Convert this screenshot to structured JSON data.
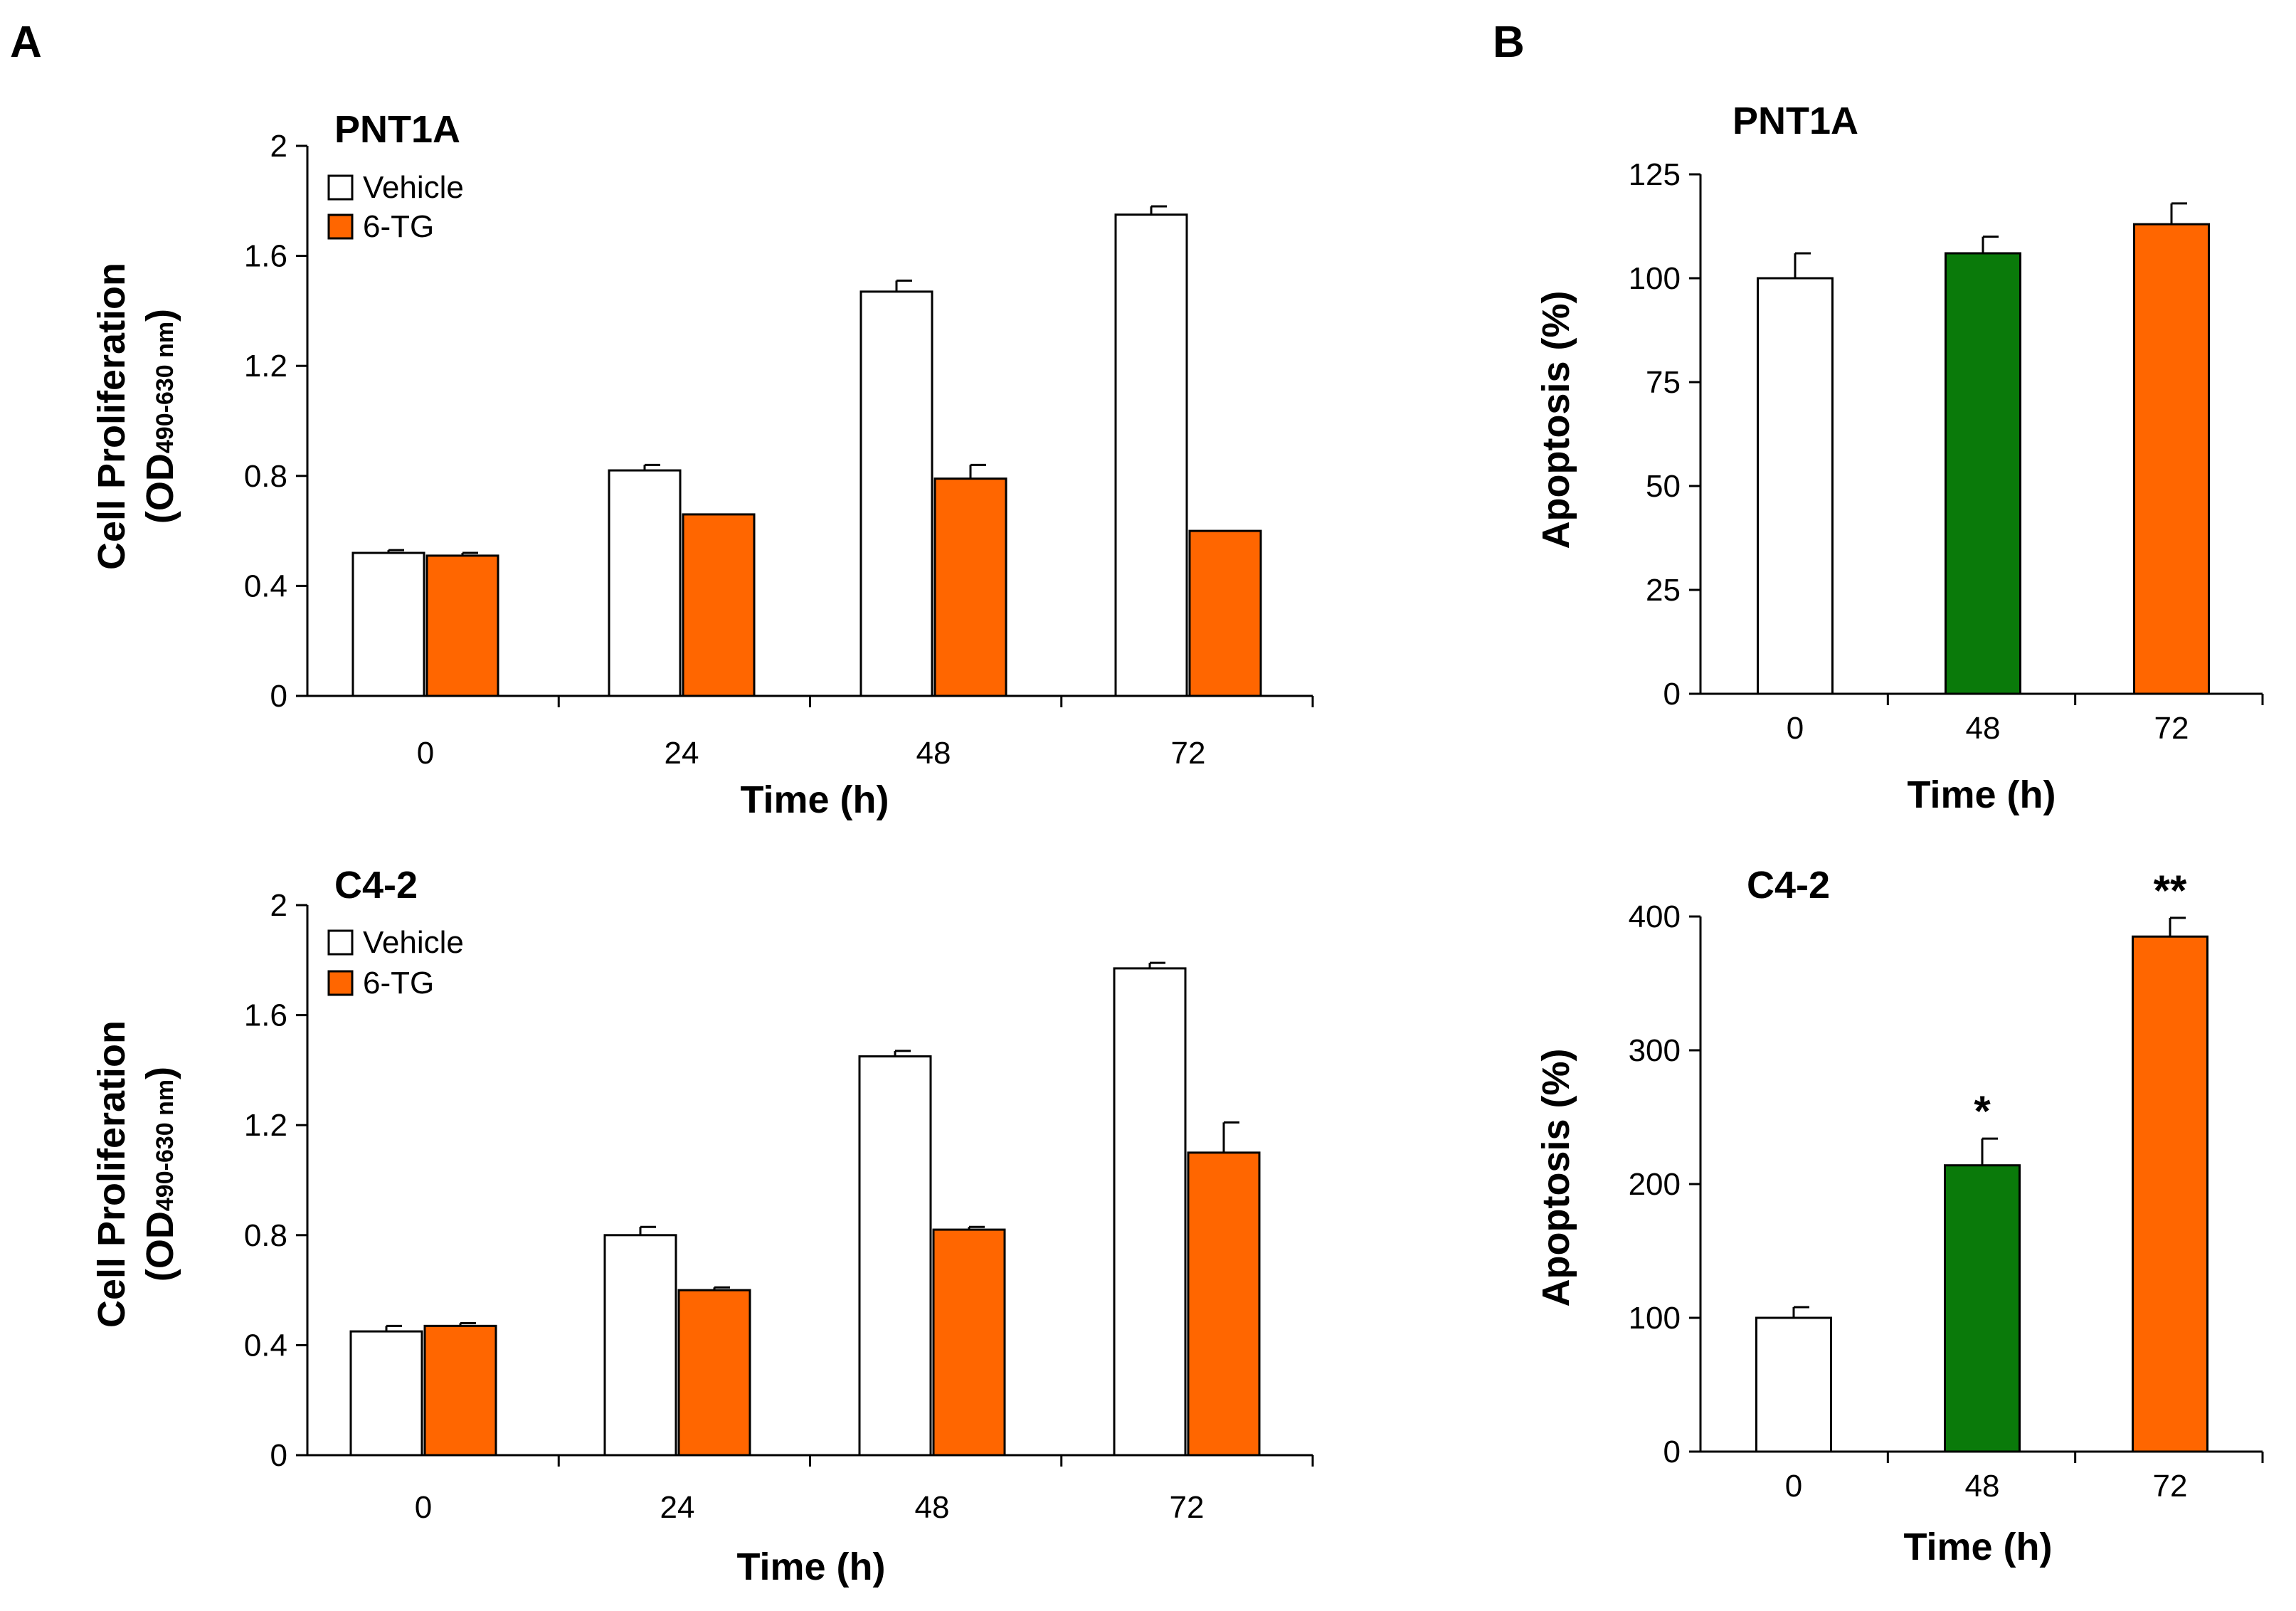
{
  "panels": [
    {
      "label": "A"
    },
    {
      "label": "B"
    }
  ],
  "colors": {
    "vehicle": "#ffffff",
    "tg": "#ff6600",
    "green": "#0a7a0a",
    "stroke": "#000000"
  },
  "chart_data": [
    {
      "type": "bar",
      "panel": "A",
      "title": "PNT1A",
      "xlabel": "Time (h)",
      "ylabel": "Cell Proliferation",
      "ylabel_unit_open": "(OD",
      "ylabel_unit_sub": "490-630 nm",
      "ylabel_unit_close": ")",
      "categories": [
        "0",
        "24",
        "48",
        "72"
      ],
      "ylim": [
        0,
        2
      ],
      "yticks": [
        "0",
        "0.4",
        "0.8",
        "1.2",
        "1.6",
        "2"
      ],
      "legend": [
        "Vehicle",
        "6-TG"
      ],
      "series": [
        {
          "name": "Vehicle",
          "values": [
            0.52,
            0.82,
            1.47,
            1.75
          ],
          "errors": [
            0.01,
            0.02,
            0.04,
            0.03
          ]
        },
        {
          "name": "6-TG",
          "values": [
            0.51,
            0.66,
            0.79,
            0.6
          ],
          "errors": [
            0.01,
            0.0,
            0.05,
            0.0
          ]
        }
      ],
      "annotations": []
    },
    {
      "type": "bar",
      "panel": "A",
      "title": "C4-2",
      "xlabel": "Time (h)",
      "ylabel": "Cell Proliferation",
      "ylabel_unit_open": "(OD",
      "ylabel_unit_sub": "490-630 nm",
      "ylabel_unit_close": ")",
      "categories": [
        "0",
        "24",
        "48",
        "72"
      ],
      "ylim": [
        0,
        2
      ],
      "yticks": [
        "0",
        "0.4",
        "0.8",
        "1.2",
        "1.6",
        "2"
      ],
      "legend": [
        "Vehicle",
        "6-TG"
      ],
      "series": [
        {
          "name": "Vehicle",
          "values": [
            0.45,
            0.8,
            1.45,
            1.77
          ],
          "errors": [
            0.02,
            0.03,
            0.02,
            0.02
          ]
        },
        {
          "name": "6-TG",
          "values": [
            0.47,
            0.6,
            0.82,
            1.1
          ],
          "errors": [
            0.01,
            0.01,
            0.01,
            0.11
          ]
        }
      ],
      "annotations": []
    },
    {
      "type": "bar",
      "panel": "B",
      "title": "PNT1A",
      "xlabel": "Time (h)",
      "ylabel": "Apoptosis (%)",
      "categories": [
        "0",
        "48",
        "72"
      ],
      "ylim": [
        0,
        125
      ],
      "yticks": [
        "0",
        "25",
        "50",
        "75",
        "100",
        "125"
      ],
      "values": [
        100,
        106,
        113
      ],
      "errors": [
        6,
        4,
        5
      ],
      "bar_colors": [
        "#ffffff",
        "#0a7a0a",
        "#ff6600"
      ],
      "annotations": [
        "",
        "",
        ""
      ]
    },
    {
      "type": "bar",
      "panel": "B",
      "title": "C4-2",
      "xlabel": "Time (h)",
      "ylabel": "Apoptosis (%)",
      "categories": [
        "0",
        "48",
        "72"
      ],
      "ylim": [
        0,
        400
      ],
      "yticks": [
        "0",
        "100",
        "200",
        "300",
        "400"
      ],
      "values": [
        100,
        214,
        385
      ],
      "errors": [
        8,
        20,
        14
      ],
      "bar_colors": [
        "#ffffff",
        "#0a7a0a",
        "#ff6600"
      ],
      "annotations": [
        "",
        "*",
        "**"
      ]
    }
  ]
}
